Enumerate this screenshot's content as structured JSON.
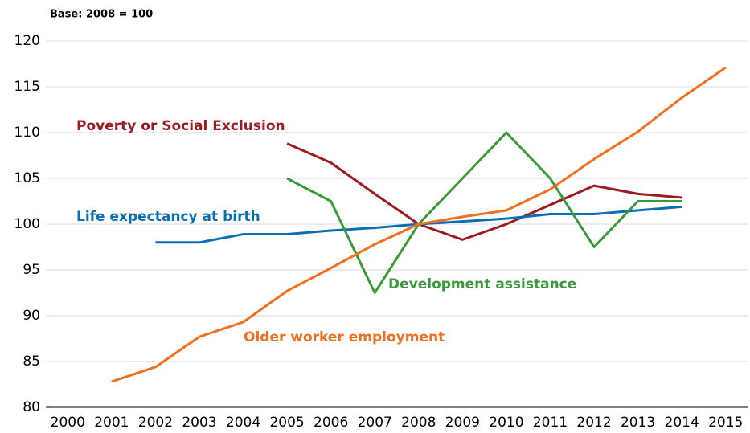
{
  "chart_data": {
    "type": "line",
    "subtitle": "Base: 2008 = 100",
    "x": [
      2000,
      2001,
      2002,
      2003,
      2004,
      2005,
      2006,
      2007,
      2008,
      2009,
      2010,
      2011,
      2012,
      2013,
      2014,
      2015
    ],
    "xlim": [
      1999.5,
      2015.5
    ],
    "xticks": [
      2000,
      2001,
      2002,
      2003,
      2004,
      2005,
      2006,
      2007,
      2008,
      2009,
      2010,
      2011,
      2012,
      2013,
      2014,
      2015
    ],
    "ylim": [
      80,
      120
    ],
    "yticks": [
      80,
      85,
      90,
      95,
      100,
      105,
      110,
      115,
      120
    ],
    "grid": true,
    "series": [
      {
        "name": "Poverty or Social Exclusion",
        "color": "#9b1b1e",
        "values": [
          null,
          null,
          null,
          null,
          null,
          108.8,
          106.7,
          103.3,
          100,
          98.3,
          100,
          102.1,
          104.2,
          103.3,
          102.9,
          null
        ]
      },
      {
        "name": "Life expectancy at birth",
        "color": "#0a6eb4",
        "values": [
          null,
          null,
          98.0,
          98.0,
          98.9,
          98.9,
          99.3,
          99.6,
          100,
          100.3,
          100.6,
          101.1,
          101.1,
          101.5,
          101.9,
          null
        ]
      },
      {
        "name": "Development assistance",
        "color": "#3a9a3a",
        "values": [
          null,
          null,
          null,
          null,
          null,
          105,
          102.5,
          92.5,
          100,
          105,
          110,
          105,
          97.5,
          102.5,
          102.5,
          null
        ]
      },
      {
        "name": "Older worker employment",
        "color": "#f07020",
        "values": [
          null,
          82.8,
          84.4,
          87.7,
          89.3,
          92.7,
          95.2,
          97.8,
          100,
          100.8,
          101.5,
          103.8,
          107.1,
          110.1,
          113.8,
          117.1
        ]
      }
    ]
  }
}
